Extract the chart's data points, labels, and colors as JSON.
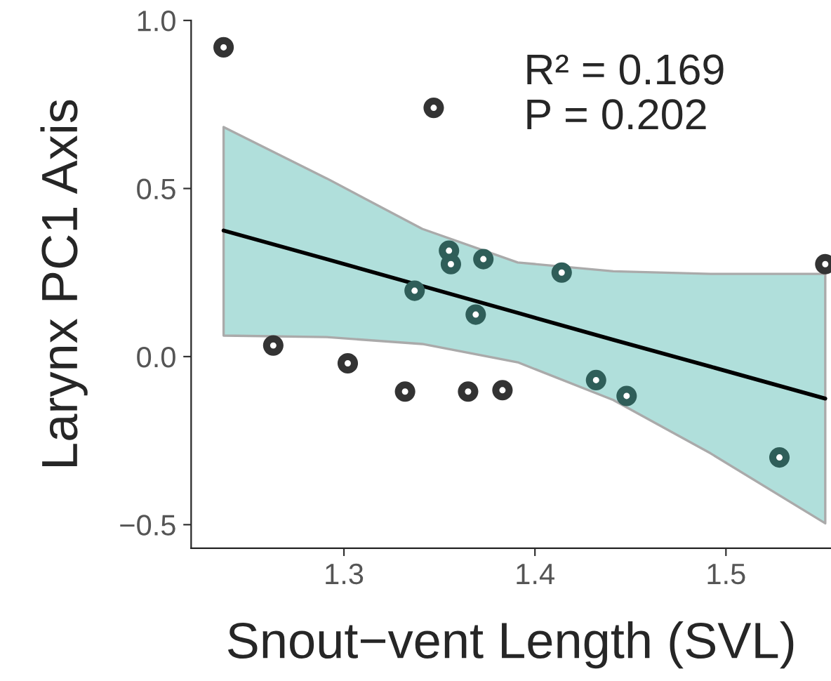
{
  "chart_data": {
    "type": "scatter",
    "xlabel": "Snout−vent Length (SVL)",
    "ylabel": "Larynx PC1 Axis",
    "annotations": [
      "R² = 0.169",
      "P = 0.202"
    ],
    "xlim": [
      1.22,
      1.555
    ],
    "ylim": [
      -0.57,
      1.0
    ],
    "xticks": [
      1.3,
      1.4,
      1.5
    ],
    "yticks": [
      {
        "value": -0.5,
        "label": "−0.5"
      },
      {
        "value": 0.0,
        "label": "0.0"
      },
      {
        "value": 0.5,
        "label": "0.5"
      },
      {
        "value": 1.0,
        "label": "1.0"
      }
    ],
    "grid": false,
    "series": [
      {
        "marker": "circle",
        "x": [
          1.237,
          1.347,
          1.355,
          1.356,
          1.373,
          1.414,
          1.337,
          1.369,
          1.552,
          1.263,
          1.302,
          1.332,
          1.365,
          1.383,
          1.432,
          1.448,
          1.528
        ],
        "values": [
          0.92,
          0.74,
          0.315,
          0.275,
          0.29,
          0.25,
          0.196,
          0.125,
          0.275,
          0.033,
          -0.02,
          -0.104,
          -0.104,
          -0.1,
          -0.07,
          -0.117,
          -0.3
        ],
        "colors": [
          "#333333",
          "#333333",
          "#2f5e59",
          "#2f5e59",
          "#2f5e59",
          "#2f5e59",
          "#2f5e59",
          "#2f5e59",
          "#333333",
          "#333333",
          "#333333",
          "#333333",
          "#333333",
          "#333333",
          "#2f5e59",
          "#2f5e59",
          "#2f5e59"
        ]
      },
      {
        "type": "line",
        "color": "#000000",
        "x": [
          1.237,
          1.291,
          1.341,
          1.391,
          1.441,
          1.492,
          1.552
        ],
        "values": [
          0.375,
          0.29,
          0.21,
          0.13,
          0.05,
          -0.03,
          -0.125
        ],
        "lower": [
          0.0625,
          0.058,
          0.0375,
          -0.017,
          -0.129,
          -0.288,
          -0.496
        ],
        "upper": [
          0.683,
          0.53,
          0.38,
          0.28,
          0.254,
          0.246,
          0.246
        ]
      }
    ]
  }
}
